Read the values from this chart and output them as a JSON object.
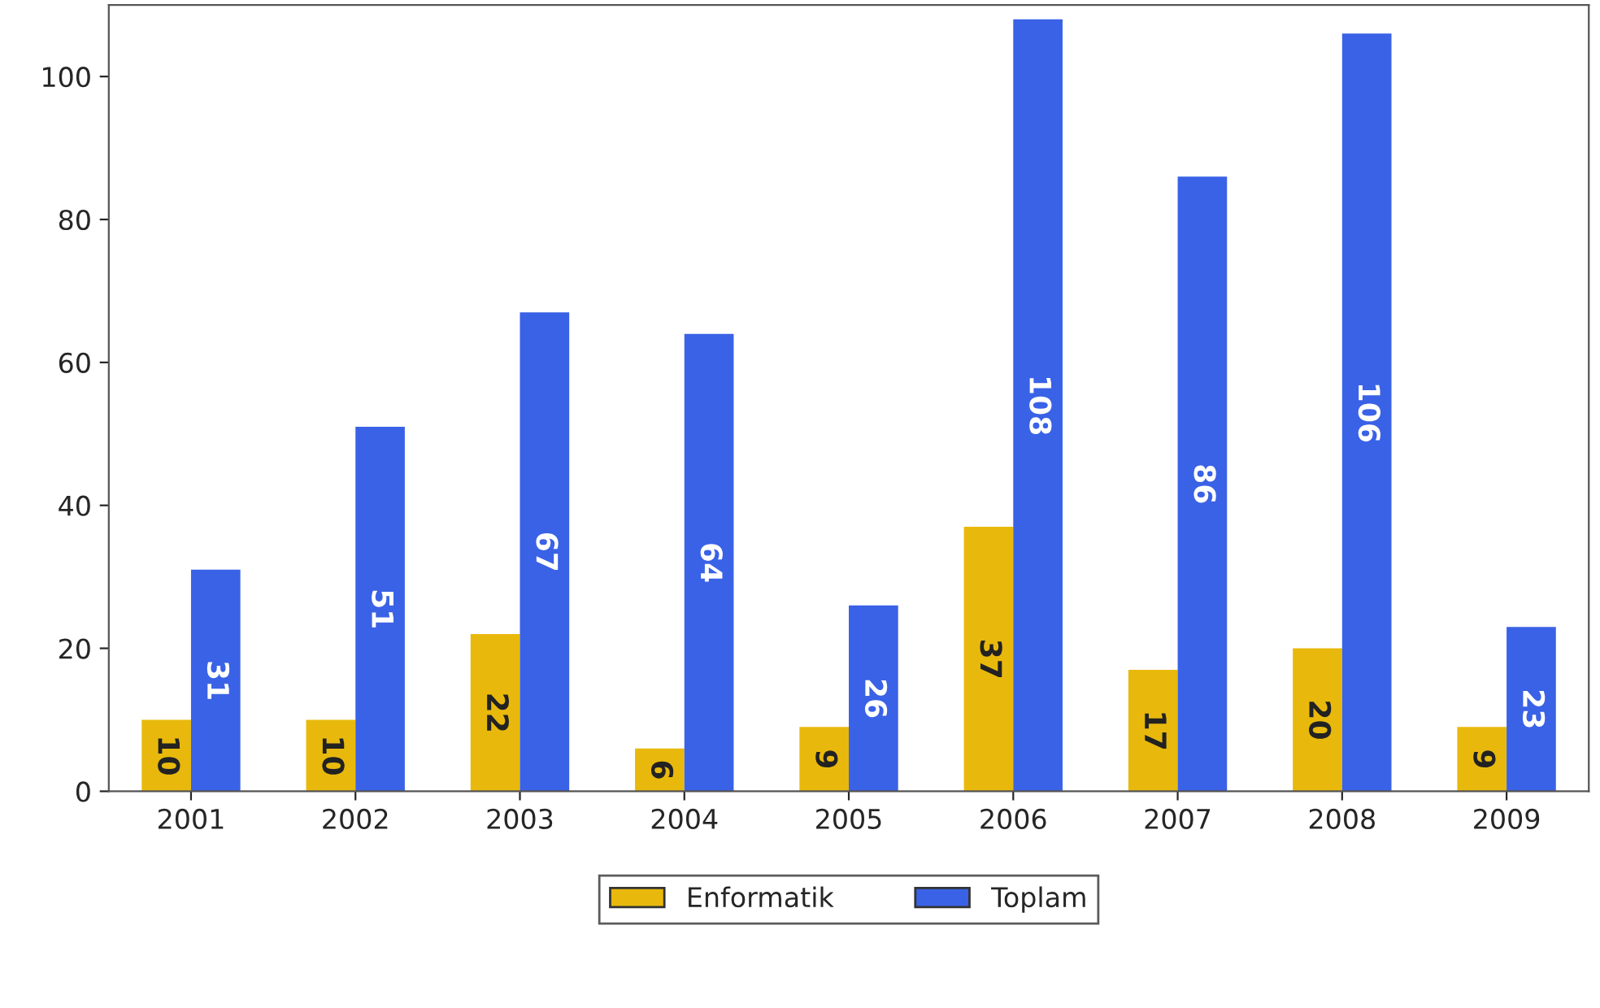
{
  "chart_data": {
    "type": "bar",
    "categories": [
      "2001",
      "2002",
      "2003",
      "2004",
      "2005",
      "2006",
      "2007",
      "2008",
      "2009"
    ],
    "series": [
      {
        "name": "Enformatik",
        "color": "#e8b90c",
        "values": [
          10,
          10,
          22,
          6,
          9,
          37,
          17,
          20,
          9
        ]
      },
      {
        "name": "Toplam",
        "color": "#3a62e6",
        "values": [
          31,
          51,
          67,
          64,
          26,
          108,
          86,
          106,
          23
        ]
      }
    ],
    "ylim": [
      0,
      110
    ],
    "yticks": [
      0,
      20,
      40,
      60,
      80,
      100
    ],
    "data_labels": true,
    "legend": "bottom",
    "grid": false
  }
}
